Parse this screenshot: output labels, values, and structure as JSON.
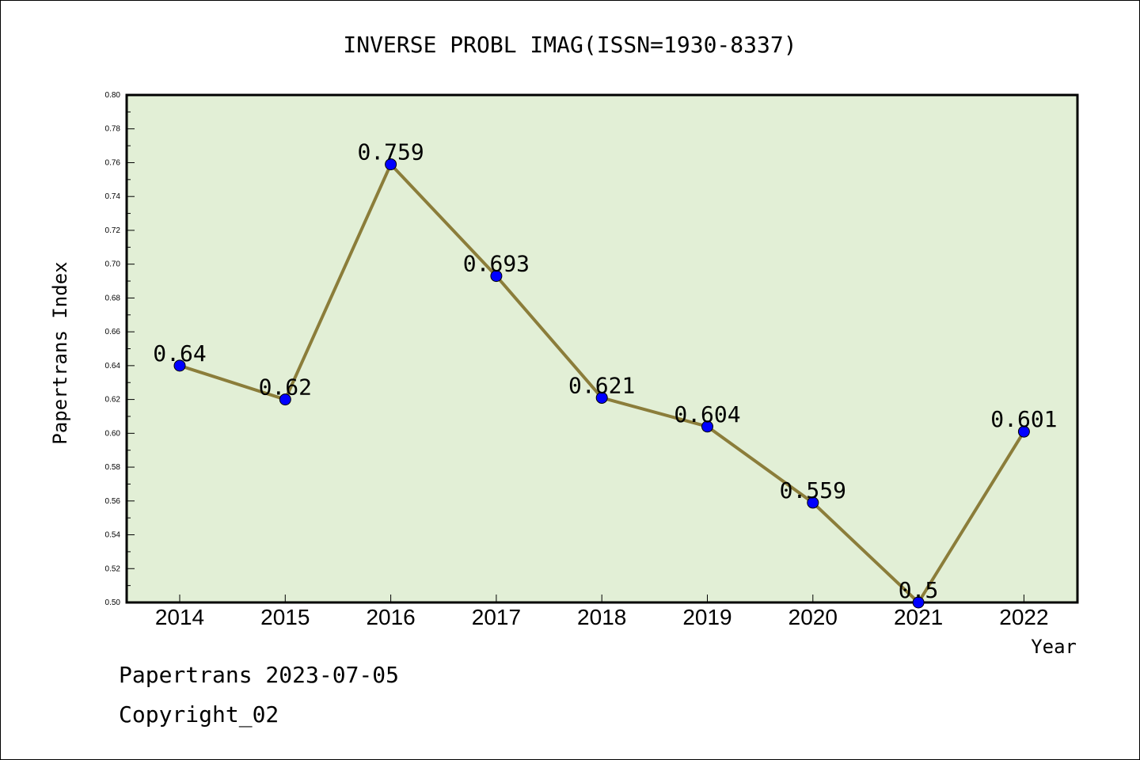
{
  "chart_data": {
    "type": "line",
    "title": "INVERSE PROBL IMAG(ISSN=1930-8337)",
    "xlabel": "Year",
    "ylabel": "Papertrans Index",
    "categories": [
      "2014",
      "2015",
      "2016",
      "2017",
      "2018",
      "2019",
      "2020",
      "2021",
      "2022"
    ],
    "series": [
      {
        "values": [
          0.64,
          0.62,
          0.759,
          0.693,
          0.621,
          0.604,
          0.559,
          0.5,
          0.601
        ]
      }
    ],
    "data_labels": [
      "0.64",
      "0.62",
      "0.759",
      "0.693",
      "0.621",
      "0.604",
      "0.559",
      "0.5",
      "0.601"
    ],
    "ylim": [
      0.5,
      0.8
    ],
    "yticks": [
      "0.50",
      "0.52",
      "0.54",
      "0.56",
      "0.58",
      "0.60",
      "0.62",
      "0.64",
      "0.66",
      "0.68",
      "0.70",
      "0.72",
      "0.74",
      "0.76",
      "0.78",
      "0.80"
    ],
    "grid": false,
    "colors": {
      "plot_background": "#e2efd6",
      "line": "#8b7d3a",
      "marker": "#0000ff"
    }
  },
  "footer": {
    "line1": "Papertrans 2023-07-05",
    "line2": "Copyright_02"
  }
}
